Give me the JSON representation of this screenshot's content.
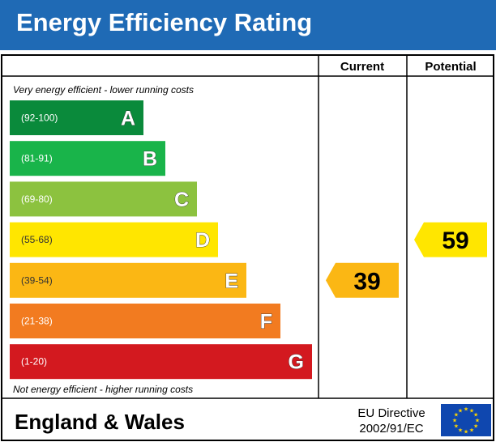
{
  "title": "Energy Efficiency Rating",
  "colors": {
    "header_bg": "#1f6ab5",
    "band_a": "#0a8a3b",
    "band_b": "#19b44a",
    "band_c": "#8cc23f",
    "band_d": "#ffe600",
    "band_e": "#fbb714",
    "band_f": "#f27b20",
    "band_g": "#d3191f",
    "eu_flag": "#0f47af",
    "eu_star": "#ffd500"
  },
  "columns": {
    "current": "Current",
    "potential": "Potential"
  },
  "notes": {
    "top": "Very energy efficient - lower running costs",
    "bottom": "Not energy efficient - higher running costs"
  },
  "footer": {
    "region": "England & Wales",
    "directive_line1": "EU Directive",
    "directive_line2": "2002/91/EC",
    "flag_icon": "eu-flag-icon"
  },
  "chart_data": {
    "type": "bar",
    "categories": [
      "A",
      "B",
      "C",
      "D",
      "E",
      "F",
      "G"
    ],
    "bands": [
      {
        "letter": "A",
        "range": "(92-100)",
        "min": 92,
        "max": 100,
        "color": "#0a8a3b"
      },
      {
        "letter": "B",
        "range": "(81-91)",
        "min": 81,
        "max": 91,
        "color": "#19b44a"
      },
      {
        "letter": "C",
        "range": "(69-80)",
        "min": 69,
        "max": 80,
        "color": "#8cc23f"
      },
      {
        "letter": "D",
        "range": "(55-68)",
        "min": 55,
        "max": 68,
        "color": "#ffe600"
      },
      {
        "letter": "E",
        "range": "(39-54)",
        "min": 39,
        "max": 54,
        "color": "#fbb714"
      },
      {
        "letter": "F",
        "range": "(21-38)",
        "min": 21,
        "max": 38,
        "color": "#f27b20"
      },
      {
        "letter": "G",
        "range": "(1-20)",
        "min": 1,
        "max": 20,
        "color": "#d3191f"
      }
    ],
    "current": {
      "value": 39,
      "band": "E"
    },
    "potential": {
      "value": 59,
      "band": "D"
    }
  }
}
